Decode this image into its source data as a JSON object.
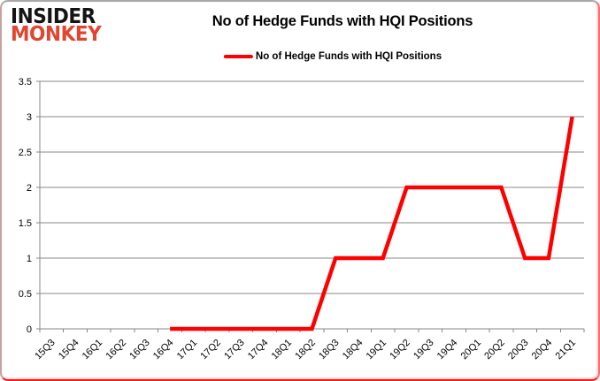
{
  "brand": {
    "line1": "INSIDER",
    "line2": "MONKEY",
    "color_line1": "#141414",
    "color_line2": "#e2452f"
  },
  "header": {
    "title": "No of Hedge Funds with HQI Positions"
  },
  "legend": {
    "label": "No of Hedge Funds with HQI Positions",
    "marker_color": "#fe0000"
  },
  "chart_data": {
    "type": "line",
    "title": "No of Hedge Funds with HQI Positions",
    "categories": [
      "15Q3",
      "15Q4",
      "16Q1",
      "16Q2",
      "16Q3",
      "16Q4",
      "17Q1",
      "17Q2",
      "17Q3",
      "17Q4",
      "18Q1",
      "18Q2",
      "18Q3",
      "18Q4",
      "19Q1",
      "19Q2",
      "19Q3",
      "19Q4",
      "20Q1",
      "20Q2",
      "20Q3",
      "20Q4",
      "21Q1"
    ],
    "series": [
      {
        "name": "No of Hedge Funds with HQI Positions",
        "color": "#fe0000",
        "values": [
          null,
          null,
          null,
          null,
          null,
          0,
          0,
          0,
          0,
          0,
          0,
          0,
          1,
          1,
          1,
          2,
          2,
          2,
          2,
          2,
          1,
          1,
          3
        ]
      }
    ],
    "xlabel": "",
    "ylabel": "",
    "ylim": [
      0,
      3.5
    ],
    "ytick_step": 0.5,
    "ytick_labels": [
      "0",
      "0.5",
      "1",
      "1.5",
      "2",
      "2.5",
      "3",
      "3.5"
    ],
    "grid": true,
    "gridline_color": "#878787",
    "axis_color": "#878787",
    "tick_label_color": "#000000",
    "legend_position": "top"
  }
}
